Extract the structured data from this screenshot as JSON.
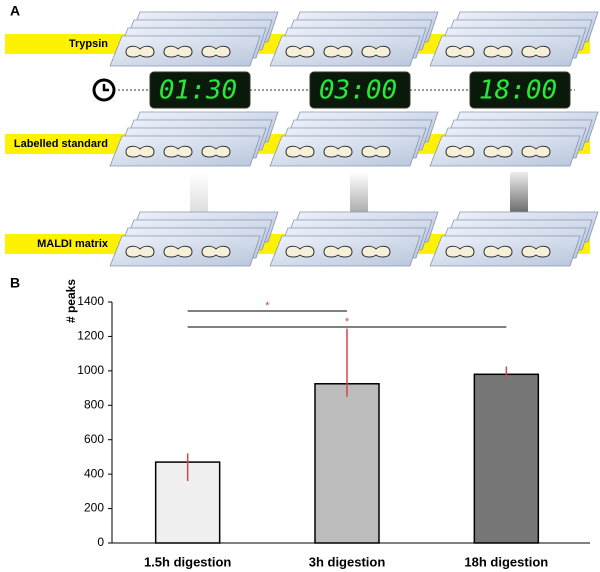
{
  "panel_a": {
    "label": "A",
    "steps": [
      "Trypsin",
      "Labelled standard",
      "MALDI matrix"
    ],
    "timers": [
      "01:30",
      "03:00",
      "18:00"
    ]
  },
  "chart_data": {
    "type": "bar",
    "panel_label": "B",
    "ylabel": "# peaks",
    "categories": [
      "1.5h digestion",
      "3h digestion",
      "18h digestion"
    ],
    "values": [
      470,
      925,
      980
    ],
    "error_minus": [
      110,
      75,
      20
    ],
    "error_plus": [
      50,
      320,
      45
    ],
    "colors": [
      "#efefef",
      "#bcbcbc",
      "#777777"
    ],
    "error_color": "#d04848",
    "significance": [
      "*",
      "*"
    ],
    "ylim": [
      0,
      1400
    ],
    "yticks": [
      0,
      200,
      400,
      600,
      800,
      1000,
      1200,
      1400
    ]
  }
}
